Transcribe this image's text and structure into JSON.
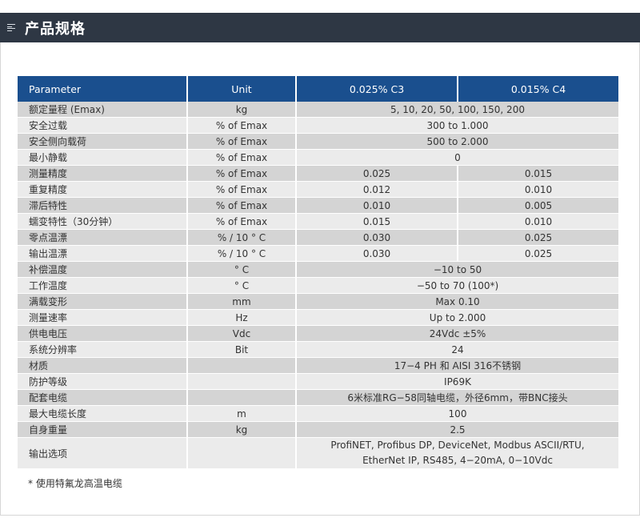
{
  "header": {
    "title": "产品规格"
  },
  "table": {
    "headers": [
      "Parameter",
      "Unit",
      "0.025% C3",
      "0.015% C4"
    ],
    "rows": [
      {
        "param": "额定量程 (Emax)",
        "unit": "kg",
        "value": "5, 10, 20, 50, 100, 150, 200"
      },
      {
        "param": "安全过载",
        "unit": "% of Emax",
        "value": "300 to 1.000"
      },
      {
        "param": "安全侧向载荷",
        "unit": "% of Emax",
        "value": "500 to 2.000"
      },
      {
        "param": "最小静载",
        "unit": "% of Emax",
        "value": "0"
      },
      {
        "param": "测量精度",
        "unit": "% of Emax",
        "c3": "0.025",
        "c4": "0.015"
      },
      {
        "param": "重复精度",
        "unit": "% of Emax",
        "c3": "0.012",
        "c4": "0.010"
      },
      {
        "param": "滞后特性",
        "unit": "% of Emax",
        "c3": "0.010",
        "c4": "0.005"
      },
      {
        "param": "蠕变特性（30分钟）",
        "unit": "% of Emax",
        "c3": "0.015",
        "c4": "0.010"
      },
      {
        "param": "零点温漂",
        "unit": "% / 10 ° C",
        "c3": "0.030",
        "c4": "0.025"
      },
      {
        "param": "输出温漂",
        "unit": "% / 10 ° C",
        "c3": "0.030",
        "c4": "0.025"
      },
      {
        "param": "补偿温度",
        "unit": "° C",
        "value": "−10 to 50"
      },
      {
        "param": "工作温度",
        "unit": "° C",
        "value": "−50 to 70 (100*)"
      },
      {
        "param": "满载变形",
        "unit": "mm",
        "value": "Max 0.10"
      },
      {
        "param": "测量速率",
        "unit": "Hz",
        "value": "Up to 2.000"
      },
      {
        "param": "供电电压",
        "unit": "Vdc",
        "value": "24Vdc ±5%"
      },
      {
        "param": "系统分辨率",
        "unit": "Bit",
        "value": "24"
      },
      {
        "param": "材质",
        "unit": "",
        "value": "17−4 PH 和 AISI 316不锈钢"
      },
      {
        "param": "防护等级",
        "unit": "",
        "value": "IP69K"
      },
      {
        "param": "配套电缆",
        "unit": "",
        "value": "6米标准RG−58同轴电缆，外径6mm，带BNC接头"
      },
      {
        "param": "最大电缆长度",
        "unit": "m",
        "value": "100"
      },
      {
        "param": "自身重量",
        "unit": "kg",
        "value": "2.5"
      },
      {
        "param": "输出选项",
        "unit": "",
        "value_lines": [
          "ProfiNET, Profibus DP, DeviceNet, Modbus ASCII/RTU,",
          "EtherNet IP, RS485, 4−20mA, 0−10Vdc"
        ]
      }
    ]
  },
  "footnote": "* 使用特氟龙高温电缆"
}
